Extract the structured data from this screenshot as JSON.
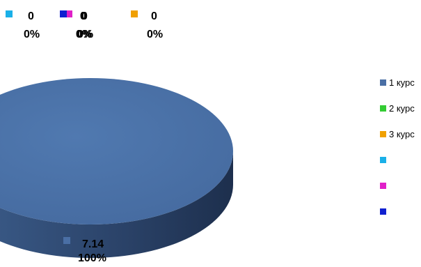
{
  "chart_data": {
    "type": "pie",
    "style": "3d",
    "legend_position": "right",
    "categories": [
      "1 курс",
      "2 курс",
      "3 курс",
      "",
      "",
      ""
    ],
    "values": [
      7.14,
      0,
      0,
      0,
      0,
      0
    ],
    "value_labels": [
      "7.14",
      "0",
      "0",
      "0",
      "0",
      "0"
    ],
    "percent_labels": [
      "100%",
      "0%",
      "0%",
      "0%",
      "0%",
      "0%"
    ],
    "colors": [
      "#4a6fa5",
      "#33cc33",
      "#f0a000",
      "#1ab0e8",
      "#e020c8",
      "#1020d0"
    ],
    "side_color": "#2b4369"
  }
}
